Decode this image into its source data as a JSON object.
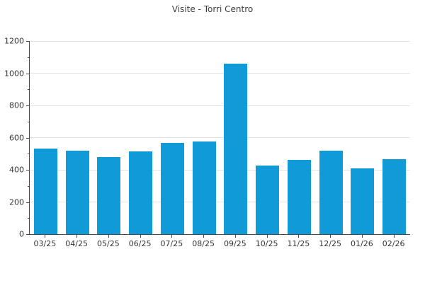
{
  "chart_data": {
    "type": "bar",
    "title": "Visite - Torri Centro",
    "categories": [
      "03/25",
      "04/25",
      "05/25",
      "06/25",
      "07/25",
      "08/25",
      "09/25",
      "10/25",
      "11/25",
      "12/25",
      "01/26",
      "02/26"
    ],
    "values": [
      530,
      520,
      480,
      515,
      565,
      575,
      1060,
      425,
      460,
      520,
      410,
      465
    ],
    "xlabel": "",
    "ylabel": "",
    "ylim": [
      0,
      1200
    ],
    "yticks": [
      0,
      200,
      400,
      600,
      800,
      1000,
      1200
    ],
    "y_minor_tick_step": 100,
    "grid": "horizontal",
    "legend": "none",
    "bar_color": "#109bd8"
  },
  "colors": {
    "bar": "#109bd8",
    "grid": "#e3e3e3",
    "axis": "#4a4a4a",
    "text": "#333333",
    "title_text": "#3d3d3d",
    "background": "#ffffff"
  }
}
